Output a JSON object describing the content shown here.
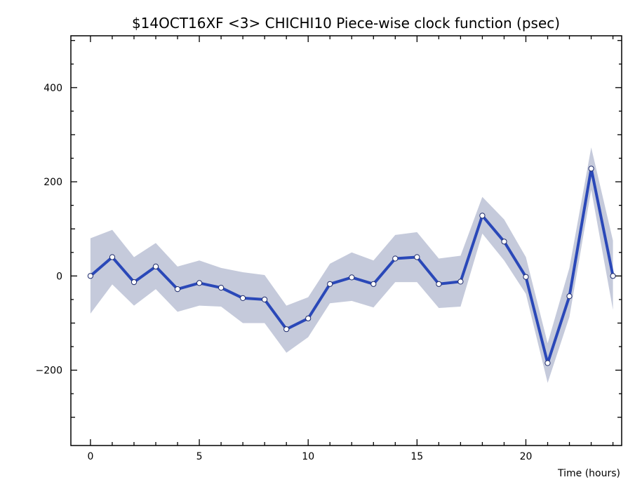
{
  "chart_data": {
    "type": "line",
    "title": "$14OCT16XF <3>  CHICHI10  Piece-wise clock function (psec)",
    "xlabel": "Time (hours)",
    "ylabel": "",
    "xlim": [
      -0.9,
      24.4
    ],
    "ylim": [
      -360,
      510
    ],
    "x_tick_values": [
      0,
      5,
      10,
      15,
      20
    ],
    "x_tick_labels": [
      "0",
      "5",
      "10",
      "15",
      "20"
    ],
    "y_tick_values": [
      -200,
      0,
      200,
      400
    ],
    "y_tick_labels": [
      "−200",
      "0",
      "200",
      "400"
    ],
    "grid": false,
    "colors": {
      "line": "#2a48b8",
      "band": "#c5cadb",
      "marker_fill": "#ffffff"
    },
    "series": [
      {
        "x": [
          0,
          1,
          2,
          3,
          4,
          5,
          6,
          7,
          8,
          9,
          10,
          11,
          12,
          13,
          14,
          15,
          16,
          17,
          18,
          19,
          20,
          21,
          22,
          23,
          24
        ],
        "values": [
          0,
          40,
          -13,
          20,
          -28,
          -15,
          -25,
          -47,
          -50,
          -113,
          -90,
          -17,
          -3,
          -17,
          37,
          40,
          -17,
          -12,
          128,
          73,
          -2,
          -185,
          -43,
          228,
          0
        ],
        "band_upper": [
          80,
          98,
          40,
          70,
          20,
          33,
          17,
          8,
          2,
          -63,
          -45,
          26,
          50,
          33,
          87,
          93,
          37,
          43,
          168,
          120,
          40,
          -143,
          17,
          273,
          75
        ],
        "band_lower": [
          -80,
          -18,
          -63,
          -28,
          -76,
          -63,
          -65,
          -100,
          -100,
          -163,
          -130,
          -58,
          -53,
          -67,
          -13,
          -13,
          -68,
          -65,
          90,
          33,
          -38,
          -227,
          -87,
          183,
          -72
        ]
      }
    ]
  }
}
